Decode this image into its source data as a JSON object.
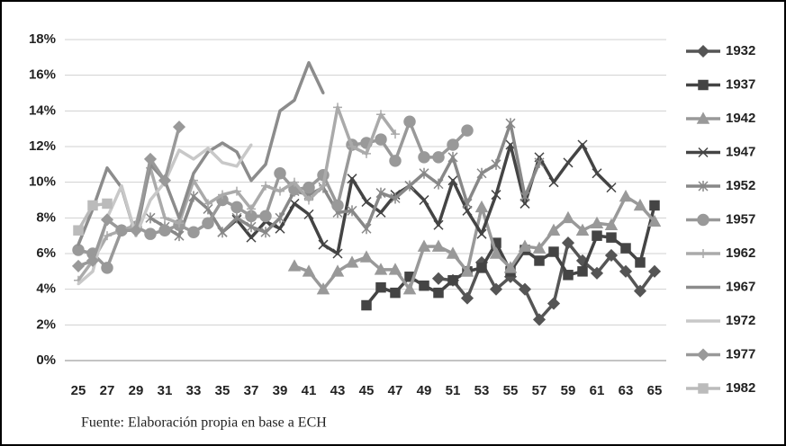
{
  "chart_data": {
    "type": "line",
    "note": "Fuente: Elaboración propia en base a ECH",
    "xlim": [
      25,
      65
    ],
    "xticks": [
      25,
      27,
      29,
      31,
      33,
      35,
      37,
      39,
      41,
      43,
      45,
      47,
      49,
      51,
      53,
      55,
      57,
      59,
      61,
      63,
      65
    ],
    "ylim": [
      0,
      18
    ],
    "yticks": [
      {
        "value": 0,
        "label": "0%"
      },
      {
        "value": 2,
        "label": "2%"
      },
      {
        "value": 4,
        "label": "4%"
      },
      {
        "value": 6,
        "label": "6%"
      },
      {
        "value": 8,
        "label": "8%"
      },
      {
        "value": 10,
        "label": "10%"
      },
      {
        "value": 12,
        "label": "12%"
      },
      {
        "value": 14,
        "label": "14%"
      },
      {
        "value": 16,
        "label": "16%"
      },
      {
        "value": 18,
        "label": "18%"
      }
    ],
    "grid": true,
    "legend": "right",
    "series": [
      {
        "name": "1932",
        "color": "#555555",
        "marker": "diamond",
        "x": [
          50,
          51,
          52,
          53,
          54,
          55,
          56,
          57,
          58,
          59,
          60,
          61,
          62,
          63,
          64,
          65
        ],
        "values": [
          4.6,
          4.5,
          3.5,
          5.5,
          4.0,
          4.7,
          4.0,
          2.3,
          3.2,
          6.6,
          5.6,
          4.9,
          5.9,
          5.0,
          3.9,
          5.0
        ]
      },
      {
        "name": "1937",
        "color": "#444444",
        "marker": "square",
        "x": [
          45,
          46,
          47,
          48,
          49,
          50,
          51,
          52,
          53,
          54,
          55,
          56,
          57,
          58,
          59,
          60,
          61,
          62,
          63,
          64,
          65
        ],
        "values": [
          3.1,
          4.1,
          3.8,
          4.7,
          4.2,
          3.8,
          4.5,
          5.0,
          5.2,
          6.6,
          5.0,
          6.2,
          5.6,
          6.1,
          4.8,
          5.0,
          7.0,
          6.9,
          6.3,
          5.5,
          8.7
        ]
      },
      {
        "name": "1942",
        "color": "#999999",
        "marker": "triangle",
        "x": [
          40,
          41,
          42,
          43,
          44,
          45,
          46,
          47,
          48,
          49,
          50,
          51,
          52,
          53,
          54,
          55,
          56,
          57,
          58,
          59,
          60,
          61,
          62,
          63,
          64,
          65
        ],
        "values": [
          5.3,
          5.0,
          4.0,
          5.0,
          5.5,
          5.8,
          5.1,
          5.1,
          4.0,
          6.4,
          6.4,
          6.0,
          5.0,
          8.6,
          6.0,
          5.2,
          6.4,
          6.3,
          7.3,
          8.0,
          7.3,
          7.7,
          7.6,
          9.2,
          8.7,
          7.8
        ]
      },
      {
        "name": "1947",
        "color": "#444444",
        "marker": "x",
        "x": [
          35,
          36,
          37,
          38,
          39,
          40,
          41,
          42,
          43,
          44,
          45,
          46,
          47,
          48,
          49,
          50,
          51,
          52,
          53,
          54,
          55,
          56,
          57,
          58,
          59,
          60,
          61,
          62
        ],
        "values": [
          7.2,
          7.9,
          6.9,
          7.8,
          7.4,
          8.8,
          8.2,
          6.5,
          6.0,
          10.2,
          8.9,
          8.3,
          9.3,
          9.8,
          9.0,
          7.6,
          10.1,
          8.4,
          7.1,
          9.3,
          12.1,
          8.8,
          11.4,
          10.0,
          11.1,
          12.1,
          10.5,
          9.7
        ]
      },
      {
        "name": "1952",
        "color": "#888888",
        "marker": "asterisk",
        "x": [
          30,
          31,
          32,
          33,
          34,
          35,
          36,
          37,
          38,
          39,
          40,
          41,
          42,
          43,
          44,
          45,
          46,
          47,
          48,
          49,
          50,
          51,
          52,
          53,
          54,
          55,
          56,
          57
        ],
        "values": [
          8.0,
          7.5,
          7.0,
          9.2,
          8.5,
          7.2,
          8.0,
          7.5,
          7.2,
          8.0,
          9.5,
          9.3,
          9.7,
          8.3,
          8.4,
          7.4,
          9.4,
          9.1,
          9.8,
          10.5,
          9.9,
          11.4,
          8.8,
          10.5,
          11.0,
          13.3,
          9.2,
          11.1
        ]
      },
      {
        "name": "1957",
        "color": "#999999",
        "marker": "circle",
        "x": [
          25,
          26,
          27,
          28,
          29,
          30,
          31,
          32,
          33,
          34,
          35,
          36,
          37,
          38,
          39,
          40,
          41,
          42,
          43,
          44,
          45,
          46,
          47,
          48,
          49,
          50,
          51,
          52
        ],
        "values": [
          6.2,
          6.0,
          5.2,
          7.3,
          7.5,
          7.1,
          7.3,
          7.6,
          7.2,
          7.7,
          9.0,
          8.6,
          8.1,
          8.1,
          10.5,
          9.6,
          9.7,
          10.4,
          8.7,
          12.1,
          12.2,
          12.4,
          11.2,
          13.4,
          11.4,
          11.4,
          12.1,
          12.9
        ]
      },
      {
        "name": "1962",
        "color": "#aaaaaa",
        "marker": "plus",
        "x": [
          25,
          26,
          27,
          28,
          29,
          30,
          31,
          32,
          33,
          34,
          35,
          36,
          37,
          38,
          39,
          40,
          41,
          42,
          43,
          44,
          45,
          46,
          47
        ],
        "values": [
          4.5,
          5.6,
          7.0,
          7.3,
          7.6,
          10.8,
          8.0,
          7.7,
          10.1,
          8.8,
          9.3,
          9.5,
          8.5,
          9.8,
          9.5,
          10.0,
          9.0,
          9.8,
          14.2,
          12.0,
          11.6,
          13.8,
          12.7
        ]
      },
      {
        "name": "1967",
        "color": "#8c8c8c",
        "marker": "none",
        "x": [
          25,
          26,
          27,
          28,
          29,
          30,
          31,
          32,
          33,
          34,
          35,
          36,
          37,
          38,
          39,
          40,
          41,
          42
        ],
        "values": [
          6.5,
          8.5,
          10.8,
          9.7,
          7.0,
          11.0,
          10.1,
          8.0,
          10.5,
          11.7,
          12.2,
          11.7,
          10.1,
          11.0,
          14.0,
          14.6,
          16.7,
          15.0
        ]
      },
      {
        "name": "1972",
        "color": "#c8c8c8",
        "marker": "none",
        "x": [
          25,
          26,
          27,
          28,
          29,
          30,
          31,
          32,
          33,
          34,
          35,
          36,
          37
        ],
        "values": [
          4.3,
          5.0,
          8.0,
          9.8,
          7.0,
          9.0,
          10.0,
          11.8,
          11.3,
          11.9,
          11.1,
          10.9,
          12.1
        ]
      },
      {
        "name": "1977",
        "color": "#999999",
        "marker": "diamond",
        "x": [
          25,
          26,
          27,
          28,
          29,
          30,
          31,
          32
        ],
        "values": [
          5.3,
          5.6,
          7.9,
          7.3,
          7.3,
          11.3,
          10.1,
          13.1
        ]
      },
      {
        "name": "1982",
        "color": "#bbbbbb",
        "marker": "square",
        "x": [
          25,
          26,
          27
        ],
        "values": [
          7.3,
          8.7,
          8.8
        ]
      }
    ]
  }
}
